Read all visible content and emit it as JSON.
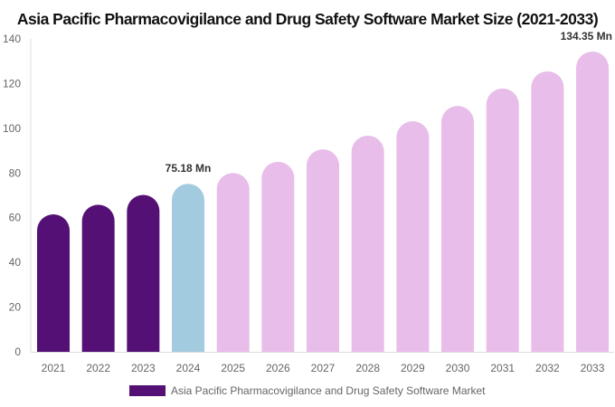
{
  "chart_data": {
    "type": "bar",
    "title": "Asia Pacific Pharmacovigilance and Drug Safety Software Market Size (2021-2033)",
    "categories": [
      "2021",
      "2022",
      "2023",
      "2024",
      "2025",
      "2026",
      "2027",
      "2028",
      "2029",
      "2030",
      "2031",
      "2032",
      "2033"
    ],
    "series": [
      {
        "name": "Asia Pacific Pharmacovigilance and Drug Safety Software Market",
        "values": [
          61.5,
          65.8,
          70.2,
          75.18,
          80.0,
          85.0,
          90.6,
          96.7,
          103.2,
          110.0,
          117.8,
          125.5,
          134.35
        ]
      }
    ],
    "data_labels": {
      "3": "75.18 Mn",
      "12": "134.35 Mn"
    },
    "ylim": [
      0,
      140
    ],
    "yticks": [
      0,
      20,
      40,
      60,
      80,
      100,
      120,
      140
    ],
    "grid": false,
    "legend_position": "bottom",
    "colors": {
      "historical": "#541074",
      "current": "#a3cbdf",
      "forecast": "#e8bde9"
    },
    "color_groups": [
      "historical",
      "historical",
      "historical",
      "current",
      "forecast",
      "forecast",
      "forecast",
      "forecast",
      "forecast",
      "forecast",
      "forecast",
      "forecast",
      "forecast"
    ]
  }
}
